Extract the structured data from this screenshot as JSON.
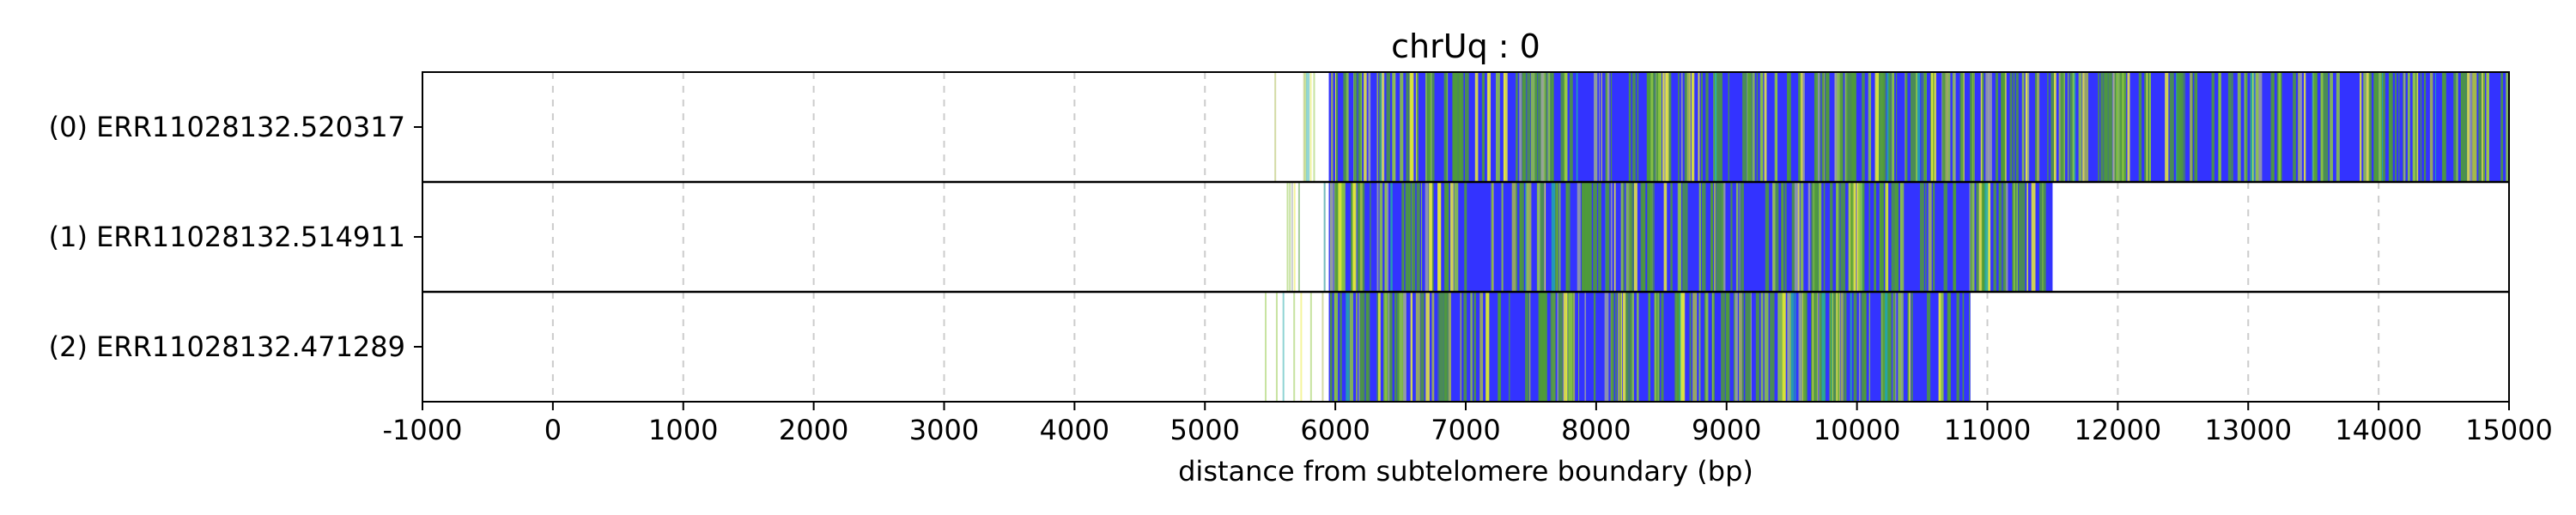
{
  "chart_data": {
    "type": "bar",
    "title": "chrUq : 0",
    "xlabel": "distance from subtelomere boundary (bp)",
    "ylabel": "",
    "xlim": [
      -1000,
      15000
    ],
    "x_ticks": [
      -1000,
      0,
      1000,
      2000,
      3000,
      4000,
      5000,
      6000,
      7000,
      8000,
      9000,
      10000,
      11000,
      12000,
      13000,
      14000,
      15000
    ],
    "grid": "vertical dashed",
    "colors": {
      "background": "#ffffff",
      "read_fill": "#3333ff",
      "motif_green": "#4f9b3a",
      "motif_light_green": "#8fc742",
      "motif_yellow": "#ecec3a",
      "motif_gray": "#9aa0a6",
      "motif_teal": "#22aaaa",
      "motif_olive": "#a7b84c",
      "grid": "#cccccc"
    },
    "reads": [
      {
        "label": "(0) ERR11028132.520317",
        "start": 5950,
        "end": 15000
      },
      {
        "label": "(1) ERR11028132.514911",
        "start": 5950,
        "end": 11500
      },
      {
        "label": "(2) ERR11028132.471289",
        "start": 5950,
        "end": 10870
      }
    ]
  }
}
